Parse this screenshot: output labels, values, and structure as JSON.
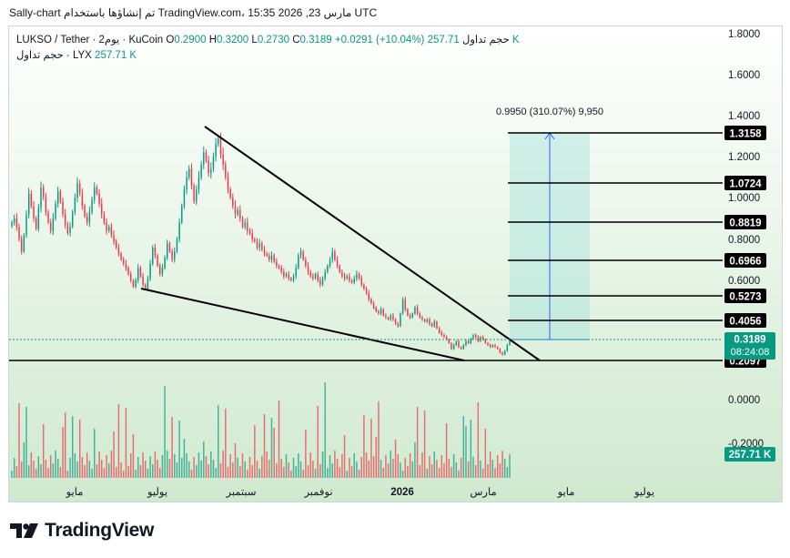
{
  "header": {
    "caption": "Sally-chart تم إنشاؤها باستخدام TradingView.com، 15:35 2026 ,23 مارس UTC"
  },
  "legend": {
    "symbol": "LUKSO / Tether · 2يوم · KuCoin",
    "o_label": "O",
    "o_value": "0.2900",
    "h_label": "H",
    "h_value": "0.3200",
    "l_label": "L",
    "l_value": "0.2730",
    "c_label": "C",
    "c_value": "0.3189",
    "change": "+0.0291 (+10.04%)",
    "volume_label": "حجم تداول",
    "volume_value": "257.71 K",
    "line2_label": "حجم تداول · LYX",
    "line2_value": "257.71 K"
  },
  "measure_label": "0.9950 (310.07%) 9,950",
  "brand": {
    "name": "TradingView",
    "logo_icon": "tradingview-logo-icon"
  },
  "colors": {
    "background_top": "#ffffff",
    "background_bottom": "#cfe9cf",
    "candle_up": "#089981",
    "candle_down": "#f23645",
    "price_badge": "#089981",
    "measure_fill": "#b3e5dd",
    "measure_arrow": "#2962ff",
    "level_badge": "#000000"
  },
  "chart_data": {
    "type": "candlestick",
    "title": "LUKSO / Tether · 2يوم · KuCoin",
    "x_ticks": [
      "مايو",
      "يوليو",
      "سبتمبر",
      "نوفمبر",
      "2026",
      "مارس",
      "مايو",
      "يوليو"
    ],
    "y_ticks": [
      "1.8000",
      "1.6000",
      "1.4000",
      "1.2000",
      "1.0000",
      "0.8000",
      "0.6000"
    ],
    "ylim": [
      0.05,
      1.85
    ],
    "volume_axis_ticks": [
      "0.0000",
      "-0.2000"
    ],
    "last_price": "0.3189",
    "countdown": "08:24:08",
    "volume_badge": "257.71 K",
    "price_levels": [
      {
        "label": "1.3158",
        "value": 1.3158
      },
      {
        "label": "1.0724",
        "value": 1.0724
      },
      {
        "label": "0.8819",
        "value": 0.8819
      },
      {
        "label": "0.6966",
        "value": 0.6966
      },
      {
        "label": "0.5273",
        "value": 0.5273
      },
      {
        "label": "0.4056",
        "value": 0.4056
      },
      {
        "label": "0.2097",
        "value": 0.2097
      }
    ],
    "close_series": [
      0.88,
      0.9,
      0.86,
      0.8,
      0.74,
      0.82,
      0.92,
      1.02,
      0.96,
      0.9,
      0.85,
      0.95,
      1.05,
      1.0,
      0.93,
      0.88,
      0.84,
      0.9,
      0.97,
      1.03,
      0.98,
      0.92,
      0.87,
      0.83,
      0.86,
      0.93,
      1.0,
      1.07,
      1.02,
      0.96,
      0.91,
      0.88,
      0.93,
      0.99,
      1.05,
      1.02,
      0.97,
      0.92,
      0.88,
      0.84,
      0.86,
      0.82,
      0.79,
      0.76,
      0.73,
      0.7,
      0.68,
      0.66,
      0.63,
      0.6,
      0.57,
      0.6,
      0.66,
      0.62,
      0.58,
      0.56,
      0.61,
      0.68,
      0.76,
      0.72,
      0.67,
      0.63,
      0.66,
      0.71,
      0.78,
      0.74,
      0.7,
      0.74,
      0.8,
      0.88,
      0.96,
      1.04,
      1.1,
      1.14,
      1.06,
      0.98,
      1.04,
      1.1,
      1.16,
      1.22,
      1.18,
      1.12,
      1.14,
      1.2,
      1.26,
      1.29,
      1.21,
      1.16,
      1.1,
      1.04,
      1.0,
      0.96,
      0.92,
      0.94,
      0.9,
      0.86,
      0.88,
      0.84,
      0.83,
      0.8,
      0.79,
      0.76,
      0.78,
      0.75,
      0.73,
      0.72,
      0.7,
      0.72,
      0.69,
      0.67,
      0.66,
      0.64,
      0.62,
      0.63,
      0.61,
      0.6,
      0.62,
      0.66,
      0.72,
      0.74,
      0.7,
      0.67,
      0.64,
      0.62,
      0.61,
      0.63,
      0.6,
      0.58,
      0.61,
      0.64,
      0.67,
      0.7,
      0.74,
      0.7,
      0.67,
      0.64,
      0.62,
      0.61,
      0.62,
      0.6,
      0.59,
      0.61,
      0.63,
      0.61,
      0.58,
      0.56,
      0.54,
      0.51,
      0.49,
      0.47,
      0.45,
      0.44,
      0.46,
      0.43,
      0.42,
      0.41,
      0.43,
      0.41,
      0.39,
      0.38,
      0.44,
      0.51,
      0.46,
      0.43,
      0.42,
      0.44,
      0.47,
      0.44,
      0.42,
      0.41,
      0.4,
      0.41,
      0.39,
      0.38,
      0.4,
      0.37,
      0.35,
      0.34,
      0.33,
      0.32,
      0.3,
      0.27,
      0.29,
      0.31,
      0.28,
      0.27,
      0.29,
      0.31,
      0.3,
      0.32,
      0.34,
      0.33,
      0.31,
      0.33,
      0.32,
      0.3,
      0.29,
      0.28,
      0.29,
      0.28,
      0.27,
      0.25,
      0.24,
      0.26,
      0.29,
      0.32
    ]
  }
}
